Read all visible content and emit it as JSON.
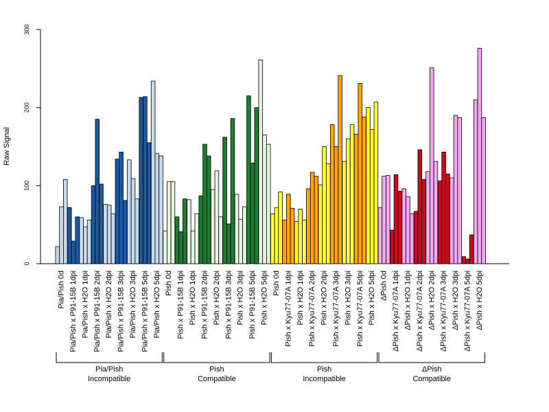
{
  "chart_data": {
    "type": "bar",
    "ylabel": "Raw Signal",
    "xlabel": "",
    "ylim": [
      0,
      300
    ],
    "yticks": [
      0,
      100,
      200,
      300
    ],
    "grid": false,
    "colors": {
      "light_blue": "#c6d9ec",
      "dark_blue": "#1a5aa4",
      "light_green": "#e4f4e0",
      "dark_green": "#237a34",
      "yellow": "#ffff33",
      "orange": "#ffa513",
      "pink": "#f3a8f3",
      "red": "#cc0a1e"
    },
    "categories": [
      {
        "label": "Pia/Pish 0d",
        "color": "light_blue",
        "values": [
          22,
          73,
          108
        ]
      },
      {
        "label": "Pia/Pish x P91-15B 1dpi",
        "color": "dark_blue",
        "values": [
          72,
          29,
          60
        ]
      },
      {
        "label": "Pia/Pish x H2O 1dpi",
        "color": "light_blue",
        "values": [
          59,
          47,
          56
        ]
      },
      {
        "label": "Pia/Pish x P91-15B 2dpi",
        "color": "dark_blue",
        "values": [
          100,
          185,
          102
        ]
      },
      {
        "label": "Pia/Pish x H2O 2dpi",
        "color": "light_blue",
        "values": [
          76,
          75,
          64
        ]
      },
      {
        "label": "Pia/Pish x P91-15B 3dpi",
        "color": "dark_blue",
        "values": [
          134,
          143,
          81
        ]
      },
      {
        "label": "Pia/Pish x H2O 3dpi",
        "color": "light_blue",
        "values": [
          133,
          109,
          83
        ]
      },
      {
        "label": "Pia/Pish x P91-15B 5dpi",
        "color": "dark_blue",
        "values": [
          213,
          214,
          155
        ]
      },
      {
        "label": "Pia/Pish x H2O 5dpi",
        "color": "light_blue",
        "values": [
          234,
          141,
          138
        ]
      },
      {
        "label": "Pish 0d",
        "color": "light_green",
        "values": [
          42,
          105,
          105
        ]
      },
      {
        "label": "Pish x P91-15B 1dpi",
        "color": "dark_green",
        "values": [
          60,
          41,
          83
        ]
      },
      {
        "label": "Pish x H2O 1dpi",
        "color": "light_green",
        "values": [
          82,
          42,
          64
        ]
      },
      {
        "label": "Pish x P91-15B 2dpi",
        "color": "dark_green",
        "values": [
          87,
          153,
          138
        ]
      },
      {
        "label": "Pish x H2O 2dpi",
        "color": "light_green",
        "values": [
          95,
          119,
          60
        ]
      },
      {
        "label": "Pish x P91-15B 3dpi",
        "color": "dark_green",
        "values": [
          162,
          51,
          186
        ]
      },
      {
        "label": "Pish x H2O 3dpi",
        "color": "light_green",
        "values": [
          89,
          57,
          73
        ]
      },
      {
        "label": "Pish x P91-15B 5dpi",
        "color": "dark_green",
        "values": [
          215,
          129,
          200
        ]
      },
      {
        "label": "Pish x H2O 5dpi",
        "color": "light_green",
        "values": [
          261,
          165,
          153
        ]
      },
      {
        "label": "Pish 0d",
        "color": "yellow",
        "values": [
          64,
          72,
          92
        ]
      },
      {
        "label": "Pish x Kyu77-07A 1dpi",
        "color": "orange",
        "values": [
          56,
          89,
          71
        ]
      },
      {
        "label": "Pish x H2O 1dpi",
        "color": "yellow",
        "values": [
          54,
          70,
          56
        ]
      },
      {
        "label": "Pish x Kyu77-07A 2dpi",
        "color": "orange",
        "values": [
          96,
          117,
          112
        ]
      },
      {
        "label": "Pish x H2O 2dpi",
        "color": "yellow",
        "values": [
          101,
          150,
          128
        ]
      },
      {
        "label": "Pish x Kyu77-07A 3dpi",
        "color": "orange",
        "values": [
          178,
          150,
          241
        ]
      },
      {
        "label": "Pish x H2O 3dpi",
        "color": "yellow",
        "values": [
          131,
          160,
          178
        ]
      },
      {
        "label": "Pish x Kyu77-07A 5dpi",
        "color": "orange",
        "values": [
          166,
          231,
          188
        ]
      },
      {
        "label": "Pish x H2O 5dpi",
        "color": "yellow",
        "values": [
          200,
          172,
          207
        ]
      },
      {
        "label": "ΔPish 0d",
        "color": "pink",
        "values": [
          72,
          112,
          113
        ]
      },
      {
        "label": "ΔPish x Kyu77-07A 1dpi",
        "color": "red",
        "values": [
          43,
          114,
          93
        ]
      },
      {
        "label": "ΔPish x H2O 1dpi",
        "color": "pink",
        "values": [
          96,
          86,
          64
        ]
      },
      {
        "label": "ΔPish x Kyu77-07A 2dpi",
        "color": "red",
        "values": [
          67,
          146,
          108
        ]
      },
      {
        "label": "ΔPish x H2O 2dpi",
        "color": "pink",
        "values": [
          118,
          251,
          131
        ]
      },
      {
        "label": "ΔPish x Kyu77-07A 3dpi",
        "color": "red",
        "values": [
          106,
          143,
          115
        ]
      },
      {
        "label": "ΔPish x H2O 3dpi",
        "color": "pink",
        "values": [
          110,
          190,
          187
        ]
      },
      {
        "label": "ΔPish x Kyu77-07A 5dpi",
        "color": "red",
        "values": [
          9,
          6,
          37
        ]
      },
      {
        "label": "ΔPish x H2O 5dpi",
        "color": "pink",
        "values": [
          210,
          276,
          187
        ]
      }
    ],
    "groups": [
      {
        "line1": "Pia/Pish",
        "line2": "Incompatible",
        "first": 0,
        "last": 8
      },
      {
        "line1": "Pish",
        "line2": "Compatible",
        "first": 9,
        "last": 17
      },
      {
        "line1": "Pish",
        "line2": "Incompatible",
        "first": 18,
        "last": 26
      },
      {
        "line1": "ΔPish",
        "line2": "Compatible",
        "first": 27,
        "last": 35
      }
    ]
  }
}
